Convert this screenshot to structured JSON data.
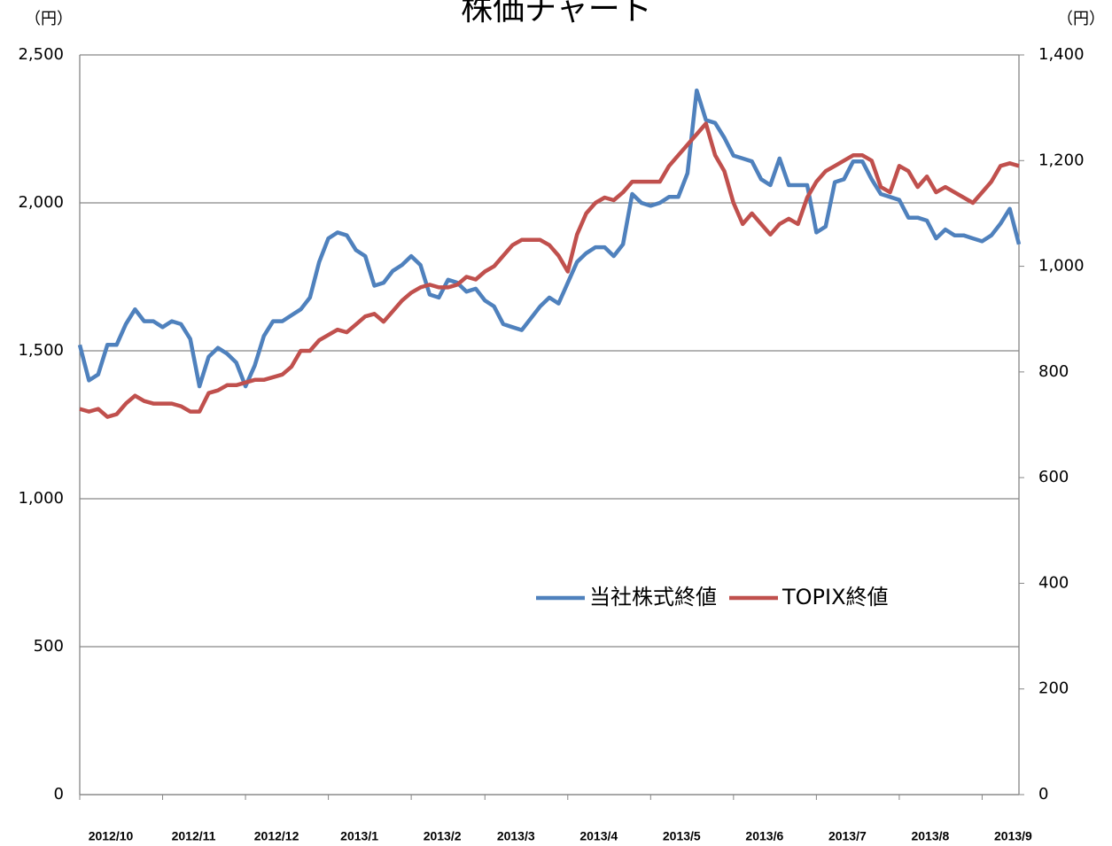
{
  "chart_data": {
    "type": "line",
    "title": "株価チャート",
    "y_unit": "（円）",
    "y2_unit": "（円）",
    "categories": [
      "2012/10",
      null,
      null,
      null,
      null,
      null,
      null,
      null,
      null,
      "2012/11",
      null,
      null,
      null,
      null,
      null,
      null,
      null,
      null,
      "2012/12",
      null,
      null,
      null,
      null,
      null,
      null,
      null,
      null,
      "2013/1",
      null,
      null,
      null,
      null,
      null,
      null,
      null,
      null,
      "2013/2",
      null,
      null,
      null,
      null,
      null,
      null,
      null,
      "2013/3",
      null,
      null,
      null,
      null,
      null,
      null,
      null,
      null,
      "2013/4",
      null,
      null,
      null,
      null,
      null,
      null,
      null,
      null,
      "2013/5",
      null,
      null,
      null,
      null,
      null,
      null,
      null,
      null,
      "2013/6",
      null,
      null,
      null,
      null,
      null,
      null,
      null,
      null,
      "2013/7",
      null,
      null,
      null,
      null,
      null,
      null,
      null,
      null,
      "2013/8",
      null,
      null,
      null,
      null,
      null,
      null,
      null,
      null,
      "2013/9",
      null,
      null,
      null,
      null
    ],
    "series": [
      {
        "name": "当社株式終値",
        "color": "#4f81bd",
        "axis": "y",
        "values": [
          1520,
          1400,
          1420,
          1520,
          1520,
          1590,
          1640,
          1600,
          1600,
          1580,
          1600,
          1590,
          1540,
          1380,
          1480,
          1510,
          1490,
          1460,
          1380,
          1450,
          1550,
          1600,
          1600,
          1620,
          1640,
          1680,
          1800,
          1880,
          1900,
          1890,
          1840,
          1820,
          1720,
          1730,
          1770,
          1790,
          1820,
          1790,
          1690,
          1680,
          1740,
          1730,
          1700,
          1710,
          1670,
          1650,
          1590,
          1580,
          1570,
          1610,
          1650,
          1680,
          1660,
          1730,
          1800,
          1830,
          1850,
          1850,
          1820,
          1860,
          2030,
          2000,
          1990,
          2000,
          2020,
          2020,
          2100,
          2380,
          2280,
          2270,
          2220,
          2160,
          2150,
          2140,
          2080,
          2060,
          2150,
          2060,
          2060,
          2060,
          1900,
          1920,
          2070,
          2080,
          2140,
          2140,
          2080,
          2030,
          2020,
          2010,
          1950,
          1950,
          1940,
          1880,
          1910,
          1890,
          1890,
          1880,
          1870,
          1890,
          1930,
          1980,
          1860
        ]
      },
      {
        "name": "TOPIX終値",
        "color": "#c0504d",
        "axis": "y2",
        "values": [
          730,
          725,
          730,
          715,
          720,
          740,
          755,
          745,
          740,
          740,
          740,
          735,
          725,
          725,
          760,
          765,
          775,
          775,
          780,
          785,
          785,
          790,
          795,
          810,
          840,
          840,
          860,
          870,
          880,
          875,
          890,
          905,
          910,
          895,
          915,
          935,
          950,
          960,
          965,
          960,
          960,
          965,
          980,
          975,
          990,
          1000,
          1020,
          1040,
          1050,
          1050,
          1050,
          1040,
          1020,
          990,
          1060,
          1100,
          1120,
          1130,
          1125,
          1140,
          1160,
          1160,
          1160,
          1160,
          1190,
          1210,
          1230,
          1250,
          1270,
          1210,
          1180,
          1120,
          1080,
          1100,
          1080,
          1060,
          1080,
          1090,
          1080,
          1130,
          1160,
          1180,
          1190,
          1200,
          1210,
          1210,
          1200,
          1150,
          1140,
          1190,
          1180,
          1150,
          1170,
          1140,
          1150,
          1140,
          1130,
          1120,
          1140,
          1160,
          1190,
          1195,
          1190
        ]
      }
    ],
    "ylim": [
      0,
      2500
    ],
    "yticks": [
      0,
      {
        "value": 500,
        "label": "500"
      },
      {
        "value": 1000,
        "label": "1,000"
      },
      {
        "value": 1500,
        "label": "1,500"
      },
      {
        "value": 2000,
        "label": "2,000"
      },
      {
        "value": 2500,
        "label": "2,500"
      }
    ],
    "y2lim": [
      0,
      1400
    ],
    "y2ticks": [
      0,
      200,
      400,
      600,
      800,
      {
        "value": 1000,
        "label": "1,000"
      },
      {
        "value": 1200,
        "label": "1,200"
      },
      {
        "value": 1400,
        "label": "1,400"
      }
    ],
    "grid": true
  }
}
